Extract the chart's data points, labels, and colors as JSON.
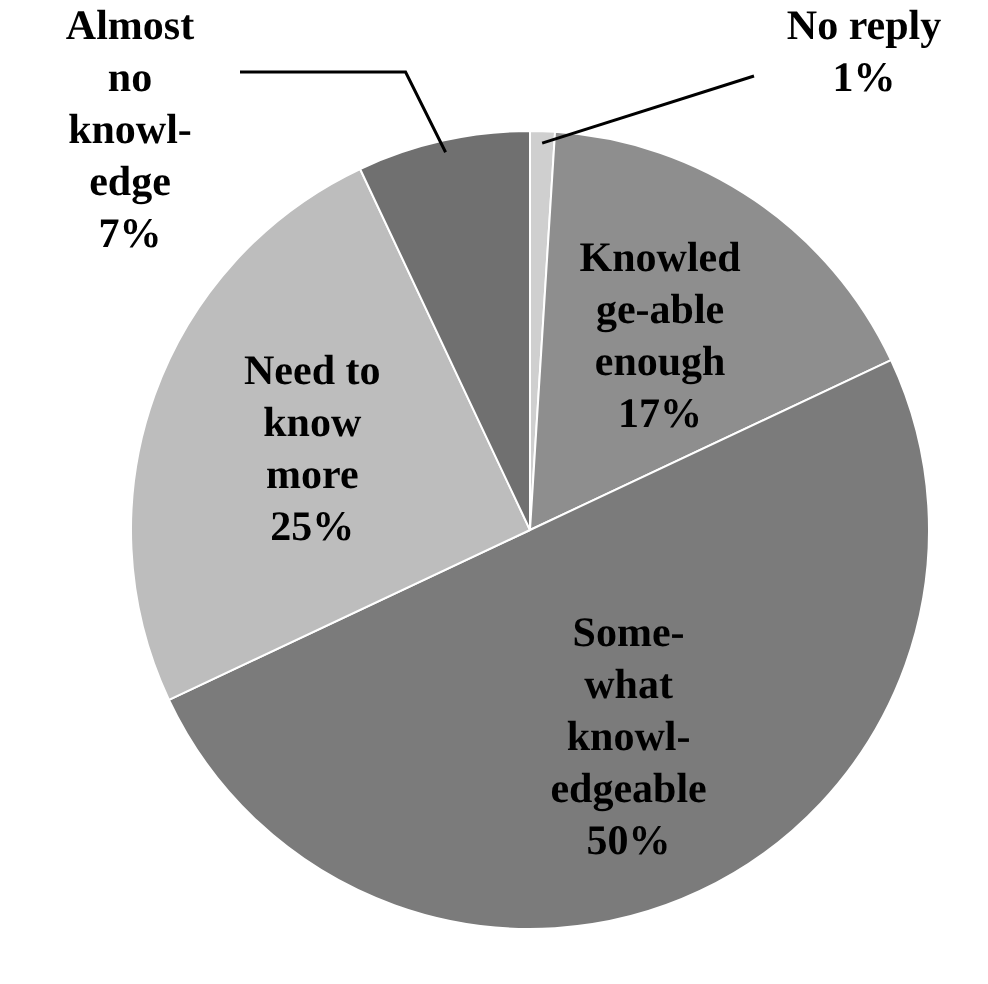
{
  "chart_data": {
    "type": "pie",
    "categories": [
      "No reply",
      "Knowled\nge-able\nenough",
      "Some-\nwhat\nknowl-\nedgeable",
      "Need to\nknow\nmore",
      "Almost\nno\nknowl-\nedge"
    ],
    "values": [
      1,
      17,
      50,
      25,
      7
    ],
    "colors": [
      "#cfcfcf",
      "#8e8e8e",
      "#7b7b7b",
      "#bdbdbd",
      "#707070"
    ],
    "value_labels": [
      "1%",
      "17%",
      "50%",
      "25%",
      "7%"
    ],
    "legend": false
  }
}
